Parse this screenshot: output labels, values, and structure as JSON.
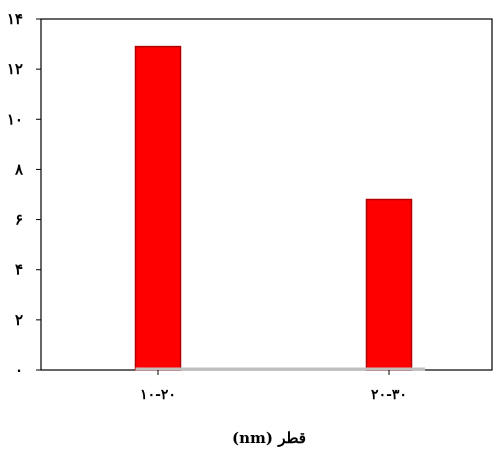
{
  "chart_data": {
    "type": "bar",
    "categories": [
      "۱۰-۲۰",
      "۲۰-۳۰"
    ],
    "values": [
      12.9,
      6.8
    ],
    "xlabel": "قطر (nm)",
    "ylabel": "",
    "ylim": [
      0,
      14
    ],
    "yticks": [
      0,
      2,
      4,
      6,
      8,
      10,
      12,
      14
    ],
    "ytick_labels": [
      "۰",
      "۲",
      "۴",
      "۶",
      "۸",
      "۱۰",
      "۱۲",
      "۱۴"
    ],
    "grid": false,
    "bar_color": "#ff0000",
    "bar_edge_color": "#b00000",
    "baseline_color": "#bfbfbf"
  }
}
